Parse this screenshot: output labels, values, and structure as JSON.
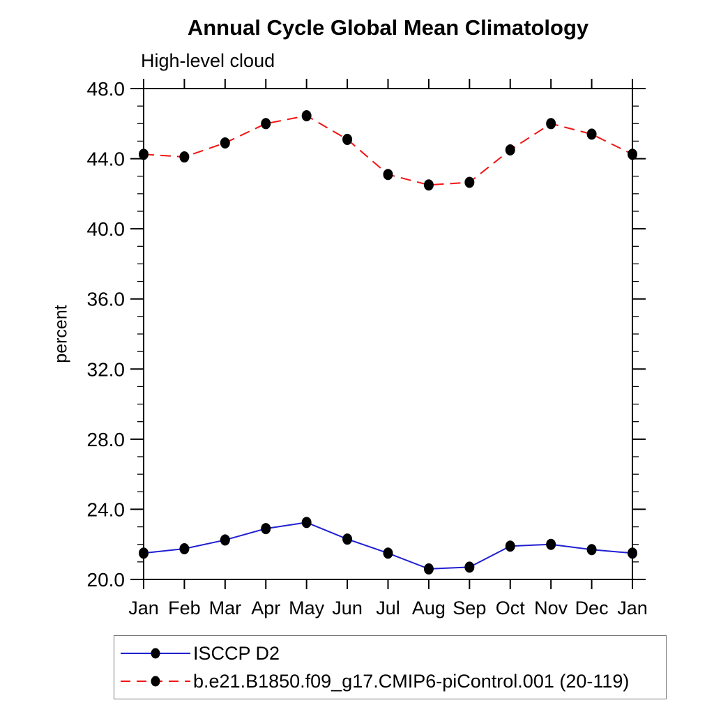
{
  "chart_data": {
    "type": "line",
    "title": "Annual Cycle Global Mean Climatology",
    "subtitle": "High-level cloud",
    "ylabel": "percent",
    "xlabel": "",
    "x_labels": [
      "Jan",
      "Feb",
      "Mar",
      "Apr",
      "May",
      "Jun",
      "Jul",
      "Aug",
      "Sep",
      "Oct",
      "Nov",
      "Dec",
      "Jan"
    ],
    "ylim": [
      20.0,
      48.0
    ],
    "y_major_step": 4,
    "y_minor_step": 1,
    "grid": false,
    "legend_position": "bottom-left",
    "axis_color": "#000000",
    "marker": {
      "shape": "filled-circle",
      "color": "#000000"
    },
    "series": [
      {
        "name": "ISCCP D2",
        "color": "#1f1fd1",
        "line_style": "solid",
        "values": [
          21.5,
          21.75,
          22.25,
          22.9,
          23.25,
          22.3,
          21.5,
          20.6,
          20.7,
          21.9,
          22.0,
          21.7,
          21.5
        ]
      },
      {
        "name": "b.e21.B1850.f09_g17.CMIP6-piControl.001 (20-119)",
        "color": "#f21414",
        "line_style": "dashed",
        "values": [
          44.25,
          44.1,
          44.9,
          46.0,
          46.45,
          45.1,
          43.1,
          42.5,
          42.65,
          44.5,
          46.0,
          45.4,
          44.25
        ]
      }
    ]
  }
}
